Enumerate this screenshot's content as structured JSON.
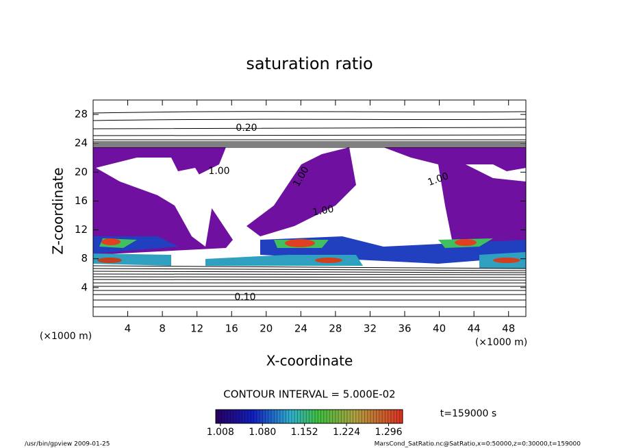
{
  "chart_data": {
    "type": "contour",
    "title": "saturation ratio",
    "xlabel": "X-coordinate",
    "ylabel": "Z-coordinate",
    "x_unit": "(×1000 m)",
    "xlim": [
      0,
      50
    ],
    "xticks": [
      4,
      8,
      12,
      16,
      20,
      24,
      28,
      32,
      36,
      40,
      44,
      48
    ],
    "ylim": [
      0,
      30
    ],
    "yticks": [
      4,
      8,
      12,
      16,
      20,
      24,
      28
    ],
    "contour_labels": [
      {
        "value": 0.2,
        "label": "0.20"
      },
      {
        "value": 1,
        "label": "1.00"
      },
      {
        "value": 1,
        "label": "1.00"
      },
      {
        "value": 1,
        "label": "1.00"
      },
      {
        "value": 1,
        "label": "1.00"
      },
      {
        "value": 0.1,
        "label": "0.10"
      }
    ],
    "contour_interval": "CONTOUR INTERVAL = 5.000E-02",
    "colorbar": {
      "lim": [
        1.0,
        1.32
      ],
      "ticks": [
        1.008,
        {
          "value": 1.08,
          "label": "1.080"
        },
        1.152,
        1.224,
        1.296
      ]
    },
    "time_label": "t=159000 s",
    "footer_left": "/usr/bin/gpview  2009-01-25",
    "footer_right": "MarsCond_SatRatio.nc@SatRatio,x=0:50000,z=0:30000,t=159000"
  }
}
